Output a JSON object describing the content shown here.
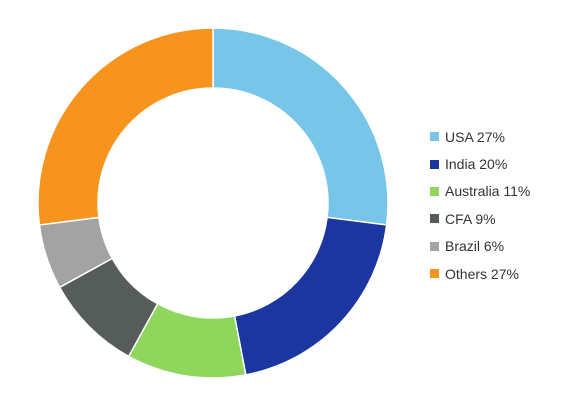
{
  "chart_data": {
    "type": "pie",
    "variant": "donut",
    "title": "",
    "categories": [
      "USA",
      "India",
      "Australia",
      "CFA",
      "Brazil",
      "Others"
    ],
    "values": [
      27,
      20,
      11,
      9,
      6,
      27
    ],
    "unit": "%",
    "colors": [
      "#77c6e9",
      "#1b35a1",
      "#8fd65c",
      "#555c5a",
      "#a3a3a3",
      "#f7941d"
    ],
    "legend": {
      "position": "right",
      "labels": [
        "USA 27%",
        "India 20%",
        "Australia 11%",
        "CFA 9%",
        "Brazil 6%",
        "Others 27%"
      ]
    },
    "start_angle": "top",
    "direction": "clockwise"
  }
}
